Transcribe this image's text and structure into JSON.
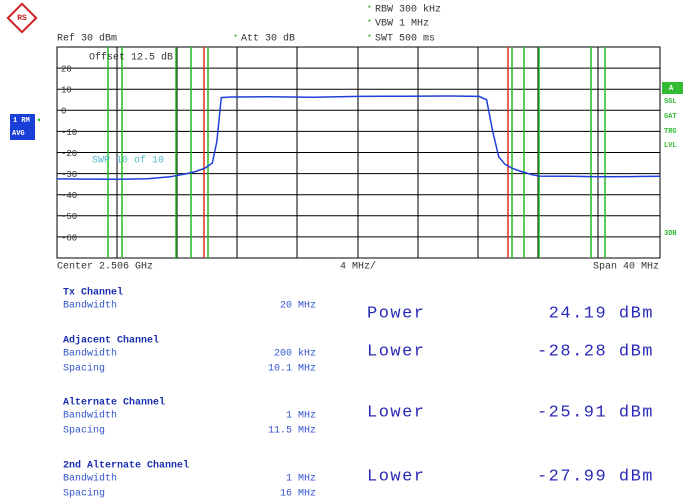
{
  "header": {
    "rbw": "RBW 300 kHz",
    "vbw": "VBW 1 MHz",
    "swt": "SWT 500 ms",
    "ref": "Ref 30 dBm",
    "att": "Att 30 dB"
  },
  "side_left": [
    "1 RM",
    "AVG"
  ],
  "side_right": [
    "A",
    "SGL",
    "GAT",
    "TRG",
    "LVL",
    "3DB"
  ],
  "chart_data": {
    "type": "line",
    "offset": "Offset   12.5 dB",
    "sweep": "SWP   10 of   10",
    "center": "Center 2.506 GHz",
    "per_div": "4 MHz/",
    "span": "Span 40 MHz",
    "x": [
      2.486,
      2.488,
      2.49,
      2.492,
      2.4935,
      2.4945,
      2.4952,
      2.4958,
      2.4963,
      2.4966,
      2.4969,
      2.4975,
      2.5,
      2.503,
      2.506,
      2.509,
      2.512,
      2.514,
      2.5145,
      2.5149,
      2.5153,
      2.5157,
      2.5162,
      2.5168,
      2.5175,
      2.518,
      2.52,
      2.522,
      2.524,
      2.526
    ],
    "values": [
      -32.5,
      -32.6,
      -32.7,
      -32.4,
      -31.5,
      -30.2,
      -29,
      -27.5,
      -25,
      -15,
      6,
      6.3,
      6.4,
      6.2,
      6.6,
      6.7,
      6.8,
      6.6,
      5,
      -10,
      -22,
      -25.5,
      -27.5,
      -29,
      -30.5,
      -31.2,
      -31.3,
      -31.5,
      -31.4,
      -31.3
    ],
    "color": "#1f3fd8",
    "xlim": [
      2.486,
      2.526
    ],
    "ylim": [
      -70,
      30
    ],
    "yticks": [
      20,
      10,
      0,
      -10,
      -20,
      -30,
      -40,
      -50,
      -60
    ],
    "grid": true
  },
  "channels": [
    {
      "title": "Tx Channel",
      "rows": [
        {
          "label": "Bandwidth",
          "value": "20 MHz"
        }
      ]
    },
    {
      "title": "Adjacent Channel",
      "rows": [
        {
          "label": "Bandwidth",
          "value": "200 kHz"
        },
        {
          "label": "Spacing",
          "value": "10.1 MHz"
        }
      ]
    },
    {
      "title": "Alternate Channel",
      "rows": [
        {
          "label": "Bandwidth",
          "value": "1 MHz"
        },
        {
          "label": "Spacing",
          "value": "11.5 MHz"
        }
      ]
    },
    {
      "title": "2nd Alternate Channel",
      "rows": [
        {
          "label": "Bandwidth",
          "value": "1 MHz"
        },
        {
          "label": "Spacing",
          "value": "16 MHz"
        }
      ]
    }
  ],
  "results": [
    {
      "label": "Power",
      "value": "24.19 dBm"
    },
    {
      "label": "Lower",
      "value": "-28.28 dBm"
    },
    {
      "label": "Lower",
      "value": "-25.91 dBm"
    },
    {
      "label": "Lower",
      "value": "-27.99 dBm"
    }
  ]
}
